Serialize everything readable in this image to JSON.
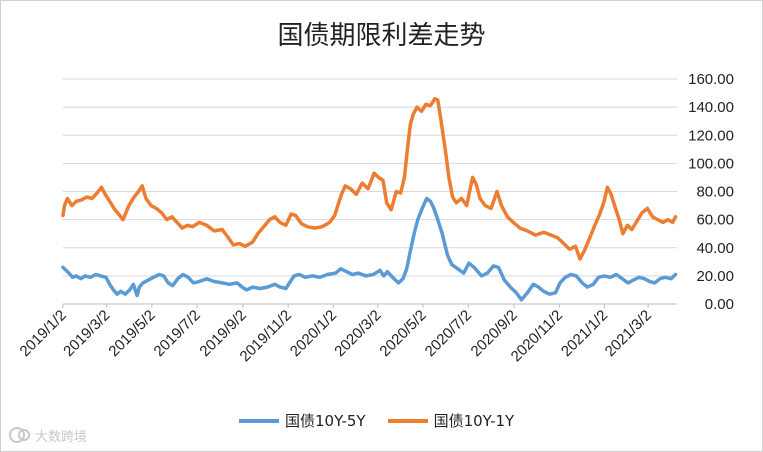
{
  "watermark": {
    "text": "大数跨境"
  },
  "chart_data": {
    "type": "line",
    "title": "国债期限利差走势",
    "xlabel": "",
    "ylabel": "",
    "ylim": [
      0,
      160
    ],
    "y_ticks": [
      "0.00",
      "20.00",
      "40.00",
      "60.00",
      "80.00",
      "100.00",
      "120.00",
      "140.00",
      "160.00"
    ],
    "y_axis_side": "right",
    "x_ticks": [
      "2019/1/2",
      "2019/3/2",
      "2019/5/2",
      "2019/7/2",
      "2019/9/2",
      "2019/11/2",
      "2020/1/2",
      "2020/3/2",
      "2020/5/2",
      "2020/7/2",
      "2020/9/2",
      "2020/11/2",
      "2021/1/2",
      "2021/3/2"
    ],
    "x_range": [
      "2019-01-02",
      "2021-04-10"
    ],
    "grid": true,
    "legend": "bottom",
    "series": [
      {
        "name": "国债10Y-5Y",
        "color": "#5b9bd5",
        "points": [
          [
            "2019-01-02",
            26
          ],
          [
            "2019-01-06",
            24
          ],
          [
            "2019-01-10",
            22
          ],
          [
            "2019-01-15",
            19
          ],
          [
            "2019-01-20",
            20
          ],
          [
            "2019-01-26",
            18
          ],
          [
            "2019-02-01",
            20
          ],
          [
            "2019-02-08",
            19
          ],
          [
            "2019-02-15",
            21
          ],
          [
            "2019-02-22",
            20
          ],
          [
            "2019-03-01",
            19
          ],
          [
            "2019-03-06",
            14
          ],
          [
            "2019-03-11",
            10
          ],
          [
            "2019-03-16",
            7
          ],
          [
            "2019-03-21",
            9
          ],
          [
            "2019-03-27",
            7
          ],
          [
            "2019-04-02",
            10
          ],
          [
            "2019-04-07",
            14
          ],
          [
            "2019-04-10",
            9
          ],
          [
            "2019-04-12",
            6
          ],
          [
            "2019-04-15",
            12
          ],
          [
            "2019-04-20",
            15
          ],
          [
            "2019-04-27",
            17
          ],
          [
            "2019-05-04",
            19
          ],
          [
            "2019-05-12",
            21
          ],
          [
            "2019-05-18",
            20
          ],
          [
            "2019-05-24",
            15
          ],
          [
            "2019-05-30",
            13
          ],
          [
            "2019-06-06",
            18
          ],
          [
            "2019-06-13",
            21
          ],
          [
            "2019-06-20",
            19
          ],
          [
            "2019-06-27",
            15
          ],
          [
            "2019-07-05",
            16
          ],
          [
            "2019-07-15",
            18
          ],
          [
            "2019-07-25",
            16
          ],
          [
            "2019-08-05",
            15
          ],
          [
            "2019-08-15",
            14
          ],
          [
            "2019-08-25",
            15
          ],
          [
            "2019-09-01",
            12
          ],
          [
            "2019-09-07",
            10
          ],
          [
            "2019-09-15",
            12
          ],
          [
            "2019-09-25",
            11
          ],
          [
            "2019-10-05",
            12
          ],
          [
            "2019-10-15",
            14
          ],
          [
            "2019-10-22",
            12
          ],
          [
            "2019-10-30",
            11
          ],
          [
            "2019-11-05",
            16
          ],
          [
            "2019-11-10",
            20
          ],
          [
            "2019-11-17",
            21
          ],
          [
            "2019-11-25",
            19
          ],
          [
            "2019-12-05",
            20
          ],
          [
            "2019-12-15",
            19
          ],
          [
            "2019-12-25",
            21
          ],
          [
            "2020-01-05",
            22
          ],
          [
            "2020-01-12",
            25
          ],
          [
            "2020-01-20",
            23
          ],
          [
            "2020-01-28",
            21
          ],
          [
            "2020-02-05",
            22
          ],
          [
            "2020-02-15",
            20
          ],
          [
            "2020-02-25",
            21
          ],
          [
            "2020-03-05",
            24
          ],
          [
            "2020-03-10",
            20
          ],
          [
            "2020-03-15",
            23
          ],
          [
            "2020-03-22",
            19
          ],
          [
            "2020-03-30",
            15
          ],
          [
            "2020-04-05",
            18
          ],
          [
            "2020-04-10",
            25
          ],
          [
            "2020-04-15",
            38
          ],
          [
            "2020-04-20",
            50
          ],
          [
            "2020-04-25",
            60
          ],
          [
            "2020-05-01",
            68
          ],
          [
            "2020-05-07",
            75
          ],
          [
            "2020-05-12",
            73
          ],
          [
            "2020-05-16",
            69
          ],
          [
            "2020-05-22",
            60
          ],
          [
            "2020-05-28",
            50
          ],
          [
            "2020-06-04",
            35
          ],
          [
            "2020-06-10",
            28
          ],
          [
            "2020-06-18",
            25
          ],
          [
            "2020-06-26",
            22
          ],
          [
            "2020-07-03",
            29
          ],
          [
            "2020-07-10",
            26
          ],
          [
            "2020-07-20",
            20
          ],
          [
            "2020-07-28",
            22
          ],
          [
            "2020-08-05",
            27
          ],
          [
            "2020-08-12",
            26
          ],
          [
            "2020-08-20",
            17
          ],
          [
            "2020-08-28",
            12
          ],
          [
            "2020-09-05",
            8
          ],
          [
            "2020-09-12",
            3
          ],
          [
            "2020-09-20",
            8
          ],
          [
            "2020-09-28",
            14
          ],
          [
            "2020-10-05",
            12
          ],
          [
            "2020-10-12",
            9
          ],
          [
            "2020-10-20",
            7
          ],
          [
            "2020-10-28",
            8
          ],
          [
            "2020-11-03",
            15
          ],
          [
            "2020-11-10",
            19
          ],
          [
            "2020-11-18",
            21
          ],
          [
            "2020-11-25",
            20
          ],
          [
            "2020-12-03",
            15
          ],
          [
            "2020-12-10",
            12
          ],
          [
            "2020-12-18",
            14
          ],
          [
            "2020-12-25",
            19
          ],
          [
            "2021-01-02",
            20
          ],
          [
            "2021-01-10",
            19
          ],
          [
            "2021-01-18",
            21
          ],
          [
            "2021-01-26",
            18
          ],
          [
            "2021-02-03",
            15
          ],
          [
            "2021-02-10",
            17
          ],
          [
            "2021-02-18",
            19
          ],
          [
            "2021-02-25",
            18
          ],
          [
            "2021-03-04",
            16
          ],
          [
            "2021-03-11",
            15
          ],
          [
            "2021-03-18",
            18
          ],
          [
            "2021-03-25",
            19
          ],
          [
            "2021-04-02",
            18
          ],
          [
            "2021-04-06",
            20
          ],
          [
            "2021-04-08",
            21
          ]
        ]
      },
      {
        "name": "国债10Y-1Y",
        "color": "#ed7d31",
        "points": [
          [
            "2019-01-02",
            63
          ],
          [
            "2019-01-04",
            70
          ],
          [
            "2019-01-08",
            75
          ],
          [
            "2019-01-14",
            70
          ],
          [
            "2019-01-20",
            73
          ],
          [
            "2019-01-27",
            74
          ],
          [
            "2019-02-03",
            76
          ],
          [
            "2019-02-10",
            75
          ],
          [
            "2019-02-17",
            79
          ],
          [
            "2019-02-23",
            83
          ],
          [
            "2019-02-28",
            78
          ],
          [
            "2019-03-06",
            73
          ],
          [
            "2019-03-12",
            68
          ],
          [
            "2019-03-18",
            64
          ],
          [
            "2019-03-24",
            60
          ],
          [
            "2019-04-01",
            70
          ],
          [
            "2019-04-08",
            76
          ],
          [
            "2019-04-14",
            80
          ],
          [
            "2019-04-19",
            84
          ],
          [
            "2019-04-24",
            75
          ],
          [
            "2019-05-01",
            70
          ],
          [
            "2019-05-08",
            68
          ],
          [
            "2019-05-15",
            65
          ],
          [
            "2019-05-22",
            60
          ],
          [
            "2019-05-29",
            62
          ],
          [
            "2019-06-05",
            58
          ],
          [
            "2019-06-12",
            54
          ],
          [
            "2019-06-19",
            56
          ],
          [
            "2019-06-26",
            55
          ],
          [
            "2019-07-05",
            58
          ],
          [
            "2019-07-15",
            56
          ],
          [
            "2019-07-25",
            52
          ],
          [
            "2019-08-05",
            53
          ],
          [
            "2019-08-12",
            48
          ],
          [
            "2019-08-20",
            42
          ],
          [
            "2019-08-28",
            43
          ],
          [
            "2019-09-05",
            41
          ],
          [
            "2019-09-15",
            44
          ],
          [
            "2019-09-22",
            50
          ],
          [
            "2019-09-30",
            55
          ],
          [
            "2019-10-08",
            60
          ],
          [
            "2019-10-15",
            62
          ],
          [
            "2019-10-22",
            58
          ],
          [
            "2019-10-30",
            56
          ],
          [
            "2019-11-06",
            64
          ],
          [
            "2019-11-12",
            63
          ],
          [
            "2019-11-20",
            57
          ],
          [
            "2019-11-28",
            55
          ],
          [
            "2019-12-08",
            54
          ],
          [
            "2019-12-18",
            55
          ],
          [
            "2019-12-28",
            58
          ],
          [
            "2020-01-04",
            63
          ],
          [
            "2020-01-08",
            70
          ],
          [
            "2020-01-13",
            78
          ],
          [
            "2020-01-18",
            84
          ],
          [
            "2020-01-25",
            82
          ],
          [
            "2020-02-02",
            78
          ],
          [
            "2020-02-10",
            86
          ],
          [
            "2020-02-18",
            82
          ],
          [
            "2020-02-26",
            93
          ],
          [
            "2020-03-03",
            90
          ],
          [
            "2020-03-09",
            88
          ],
          [
            "2020-03-14",
            72
          ],
          [
            "2020-03-20",
            67
          ],
          [
            "2020-03-27",
            80
          ],
          [
            "2020-04-02",
            79
          ],
          [
            "2020-04-07",
            90
          ],
          [
            "2020-04-11",
            110
          ],
          [
            "2020-04-15",
            128
          ],
          [
            "2020-04-19",
            135
          ],
          [
            "2020-04-24",
            140
          ],
          [
            "2020-04-30",
            137
          ],
          [
            "2020-05-06",
            142
          ],
          [
            "2020-05-12",
            141
          ],
          [
            "2020-05-18",
            146
          ],
          [
            "2020-05-22",
            145
          ],
          [
            "2020-05-26",
            132
          ],
          [
            "2020-06-01",
            110
          ],
          [
            "2020-06-06",
            90
          ],
          [
            "2020-06-11",
            76
          ],
          [
            "2020-06-16",
            72
          ],
          [
            "2020-06-23",
            75
          ],
          [
            "2020-06-30",
            70
          ],
          [
            "2020-07-04",
            80
          ],
          [
            "2020-07-08",
            90
          ],
          [
            "2020-07-13",
            85
          ],
          [
            "2020-07-18",
            75
          ],
          [
            "2020-07-25",
            70
          ],
          [
            "2020-08-02",
            68
          ],
          [
            "2020-08-10",
            80
          ],
          [
            "2020-08-16",
            70
          ],
          [
            "2020-08-24",
            62
          ],
          [
            "2020-09-01",
            58
          ],
          [
            "2020-09-10",
            54
          ],
          [
            "2020-09-20",
            52
          ],
          [
            "2020-10-01",
            49
          ],
          [
            "2020-10-12",
            51
          ],
          [
            "2020-10-22",
            49
          ],
          [
            "2020-10-31",
            47
          ],
          [
            "2020-11-08",
            43
          ],
          [
            "2020-11-16",
            39
          ],
          [
            "2020-11-24",
            41
          ],
          [
            "2020-11-30",
            32
          ],
          [
            "2020-12-06",
            38
          ],
          [
            "2020-12-14",
            48
          ],
          [
            "2020-12-20",
            56
          ],
          [
            "2020-12-26",
            63
          ],
          [
            "2021-01-01",
            72
          ],
          [
            "2021-01-06",
            83
          ],
          [
            "2021-01-11",
            78
          ],
          [
            "2021-01-17",
            68
          ],
          [
            "2021-01-22",
            60
          ],
          [
            "2021-01-27",
            50
          ],
          [
            "2021-02-02",
            56
          ],
          [
            "2021-02-08",
            53
          ],
          [
            "2021-02-15",
            59
          ],
          [
            "2021-02-22",
            65
          ],
          [
            "2021-03-01",
            68
          ],
          [
            "2021-03-08",
            62
          ],
          [
            "2021-03-15",
            60
          ],
          [
            "2021-03-22",
            58
          ],
          [
            "2021-03-29",
            60
          ],
          [
            "2021-04-04",
            58
          ],
          [
            "2021-04-08",
            62
          ]
        ]
      }
    ]
  }
}
